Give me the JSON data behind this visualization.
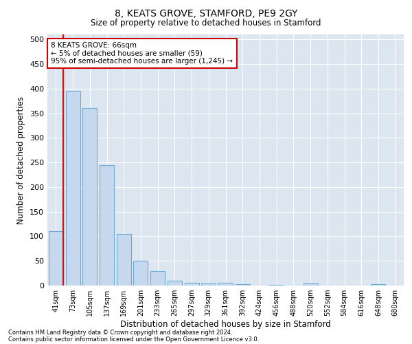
{
  "title1": "8, KEATS GROVE, STAMFORD, PE9 2GY",
  "title2": "Size of property relative to detached houses in Stamford",
  "xlabel": "Distribution of detached houses by size in Stamford",
  "ylabel": "Number of detached properties",
  "categories": [
    "41sqm",
    "73sqm",
    "105sqm",
    "137sqm",
    "169sqm",
    "201sqm",
    "233sqm",
    "265sqm",
    "297sqm",
    "329sqm",
    "361sqm",
    "392sqm",
    "424sqm",
    "456sqm",
    "488sqm",
    "520sqm",
    "552sqm",
    "584sqm",
    "616sqm",
    "648sqm",
    "680sqm"
  ],
  "values": [
    110,
    395,
    360,
    245,
    105,
    50,
    30,
    10,
    6,
    4,
    5,
    3,
    0,
    2,
    0,
    4,
    0,
    0,
    0,
    3,
    0
  ],
  "bar_color": "#c5d8ee",
  "bar_edge_color": "#6aaad4",
  "red_line_x": 0.42,
  "annotation_text": "8 KEATS GROVE: 66sqm\n← 5% of detached houses are smaller (59)\n95% of semi-detached houses are larger (1,245) →",
  "annotation_box_color": "#ffffff",
  "annotation_box_edge": "#cc0000",
  "footer1": "Contains HM Land Registry data © Crown copyright and database right 2024.",
  "footer2": "Contains public sector information licensed under the Open Government Licence v3.0.",
  "background_color": "#ffffff",
  "grid_color": "#dce6f1",
  "ylim": [
    0,
    510
  ],
  "yticks": [
    0,
    50,
    100,
    150,
    200,
    250,
    300,
    350,
    400,
    450,
    500
  ]
}
